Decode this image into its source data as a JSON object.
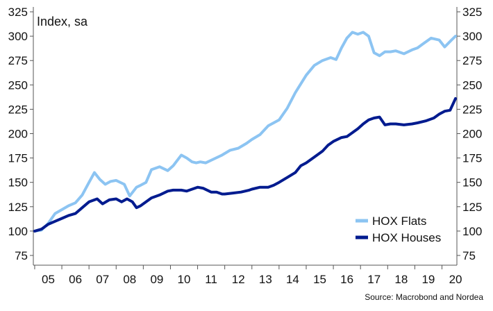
{
  "chart_data": {
    "type": "line",
    "unit_label": "Index, sa",
    "source": "Source: Macrobond and Nordea",
    "x_tick_labels": [
      "05",
      "06",
      "07",
      "08",
      "09",
      "10",
      "11",
      "12",
      "13",
      "14",
      "15",
      "16",
      "17",
      "18",
      "19",
      "20"
    ],
    "y_ticks": [
      75,
      100,
      125,
      150,
      175,
      200,
      225,
      250,
      275,
      300,
      325
    ],
    "y_tick_labels": [
      "75",
      "100",
      "125",
      "150",
      "175",
      "200",
      "225",
      "250",
      "275",
      "300",
      "325"
    ],
    "ylim": [
      65,
      330
    ],
    "xlim": [
      2004.95,
      2020.55
    ],
    "grid": false,
    "legend_position": "bottom-right",
    "series": [
      {
        "name": "HOX Flats",
        "color": "#8cc4f2",
        "x": [
          2005.0,
          2005.25,
          2005.5,
          2005.75,
          2006.0,
          2006.25,
          2006.5,
          2006.75,
          2007.0,
          2007.2,
          2007.4,
          2007.6,
          2007.8,
          2008.0,
          2008.3,
          2008.5,
          2008.75,
          2008.9,
          2009.1,
          2009.3,
          2009.6,
          2009.9,
          2010.1,
          2010.4,
          2010.6,
          2010.8,
          2010.95,
          2011.1,
          2011.3,
          2011.6,
          2011.9,
          2012.2,
          2012.5,
          2012.8,
          2013.0,
          2013.3,
          2013.6,
          2014.0,
          2014.3,
          2014.6,
          2015.0,
          2015.3,
          2015.6,
          2015.9,
          2016.1,
          2016.3,
          2016.5,
          2016.7,
          2016.9,
          2017.1,
          2017.3,
          2017.5,
          2017.7,
          2017.9,
          2018.1,
          2018.3,
          2018.6,
          2018.9,
          2019.1,
          2019.3,
          2019.6,
          2019.9,
          2020.1,
          2020.35,
          2020.5
        ],
        "values": [
          100,
          101,
          108,
          118,
          122,
          126,
          129,
          137,
          150,
          160,
          153,
          148,
          151,
          152,
          148,
          136,
          145,
          147,
          150,
          163,
          166,
          162,
          167,
          178,
          175,
          171,
          170,
          171,
          170,
          174,
          178,
          183,
          185,
          190,
          194,
          199,
          208,
          214,
          226,
          242,
          260,
          270,
          275,
          278,
          276,
          288,
          298,
          304,
          302,
          304,
          300,
          283,
          280,
          284,
          284,
          285,
          282,
          286,
          288,
          292,
          298,
          296,
          289,
          296,
          300
        ]
      },
      {
        "name": "HOX Houses",
        "color": "#001b8f",
        "x": [
          2005.0,
          2005.25,
          2005.5,
          2005.75,
          2006.0,
          2006.25,
          2006.5,
          2006.75,
          2007.0,
          2007.3,
          2007.5,
          2007.75,
          2008.0,
          2008.2,
          2008.4,
          2008.6,
          2008.75,
          2008.9,
          2009.1,
          2009.3,
          2009.6,
          2009.9,
          2010.1,
          2010.4,
          2010.6,
          2010.8,
          2011.0,
          2011.2,
          2011.5,
          2011.7,
          2011.9,
          2012.0,
          2012.3,
          2012.6,
          2012.9,
          2013.0,
          2013.3,
          2013.6,
          2013.8,
          2014.0,
          2014.3,
          2014.6,
          2014.8,
          2015.0,
          2015.3,
          2015.6,
          2015.8,
          2016.0,
          2016.3,
          2016.5,
          2016.7,
          2016.9,
          2017.1,
          2017.3,
          2017.5,
          2017.7,
          2017.9,
          2018.1,
          2018.3,
          2018.6,
          2018.9,
          2019.1,
          2019.4,
          2019.7,
          2019.9,
          2020.1,
          2020.3,
          2020.5
        ],
        "values": [
          100,
          102,
          107,
          110,
          113,
          116,
          118,
          124,
          130,
          133,
          128,
          132,
          133,
          130,
          133,
          130,
          124,
          126,
          130,
          134,
          137,
          141,
          142,
          142,
          141,
          143,
          145,
          144,
          140,
          140,
          138,
          138,
          139,
          140,
          142,
          143,
          145,
          145,
          147,
          150,
          155,
          160,
          167,
          170,
          176,
          182,
          188,
          192,
          196,
          197,
          201,
          205,
          210,
          214,
          216,
          217,
          209,
          210,
          210,
          209,
          210,
          211,
          213,
          216,
          220,
          223,
          224,
          236
        ]
      }
    ]
  }
}
